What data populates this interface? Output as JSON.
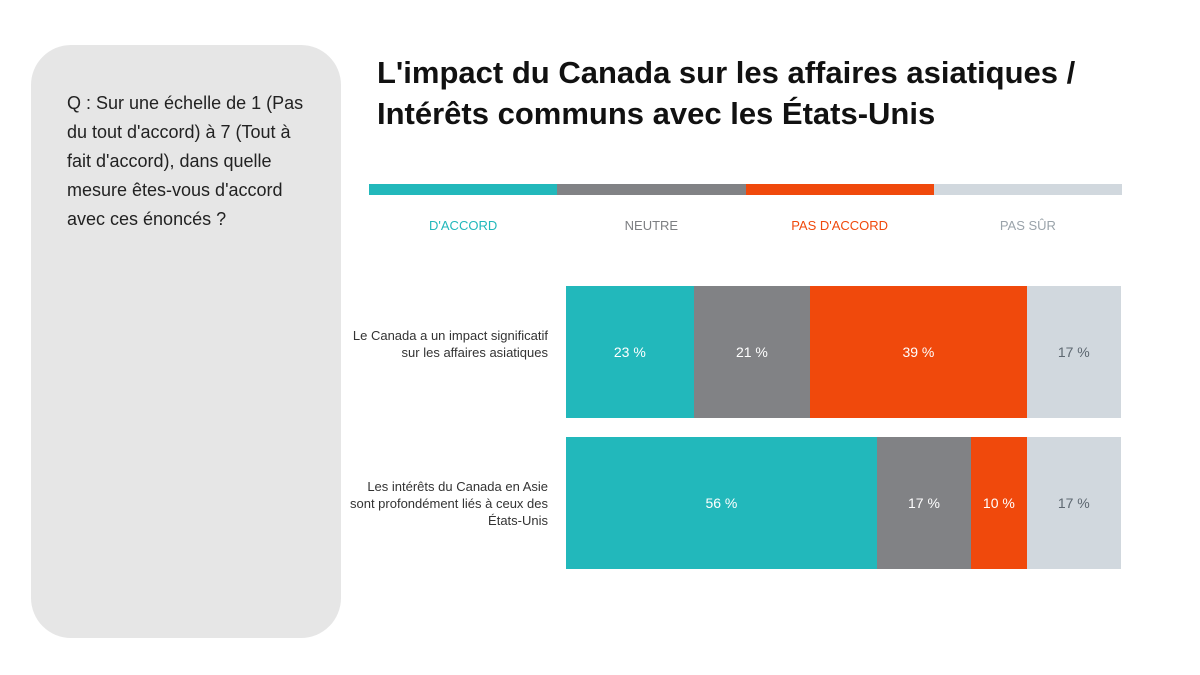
{
  "question": "Q : Sur une échelle de 1 (Pas du tout d'accord) à 7 (Tout à fait d'accord), dans quelle mesure êtes-vous d'accord avec ces énoncés ?",
  "title_line1": "L'impact du Canada sur les affaires asiatiques /",
  "title_line2": "Intérêts communs avec les États-Unis",
  "colors": {
    "agree": "#22b8bb",
    "neutral": "#818285",
    "disagree": "#f0490c",
    "unsure": "#d1d8de"
  },
  "chart_data": {
    "type": "bar",
    "orientation": "horizontal",
    "stacked": true,
    "normalized": true,
    "title": "L'impact du Canada sur les affaires asiatiques / Intérêts communs avec les États-Unis",
    "legend_position": "top",
    "grid": false,
    "categories": [
      "Le Canada a un impact significatif sur les affaires asiatiques",
      "Les intérêts du Canada en Asie sont profondément liés à ceux des États-Unis"
    ],
    "series": [
      {
        "name": "D'ACCORD",
        "key": "agree",
        "values": [
          23,
          56
        ],
        "labels": [
          "23 %",
          "56 %"
        ]
      },
      {
        "name": "NEUTRE",
        "key": "neutral",
        "values": [
          21,
          17
        ],
        "labels": [
          "21 %",
          "17 %"
        ]
      },
      {
        "name": "PAS D'ACCORD",
        "key": "disagree",
        "values": [
          39,
          10
        ],
        "labels": [
          "39 %",
          "10 %"
        ]
      },
      {
        "name": "PAS SÛR",
        "key": "unsure",
        "values": [
          17,
          17
        ],
        "labels": [
          "17 %",
          "17 %"
        ]
      }
    ]
  }
}
